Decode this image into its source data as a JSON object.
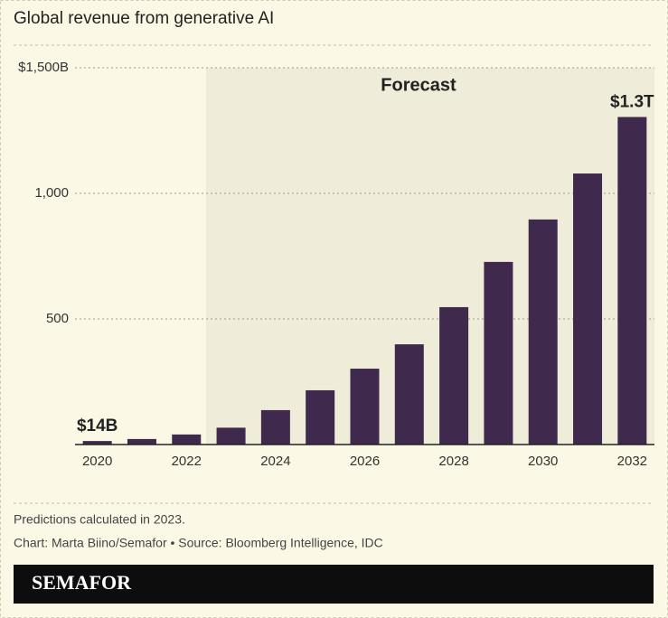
{
  "chart_data": {
    "type": "bar",
    "title": "Global revenue from generative AI",
    "categories": [
      "2020",
      null,
      "2022",
      null,
      "2024",
      null,
      "2026",
      null,
      "2028",
      null,
      "2030",
      null,
      "2032"
    ],
    "values": [
      14,
      22,
      40,
      67,
      137,
      216,
      302,
      399,
      547,
      727,
      896,
      1079,
      1304
    ],
    "value_labels": [
      "$14B",
      null,
      null,
      null,
      null,
      null,
      null,
      null,
      null,
      null,
      null,
      null,
      "$1.3T"
    ],
    "color": "#3f2a4d",
    "ylim": [
      0,
      1500
    ],
    "yticks": [
      500,
      {
        "value": 1000,
        "label": "1,000"
      },
      {
        "value": 1500,
        "label": "$1,500B"
      }
    ],
    "grid": true,
    "shaded_region": {
      "label": "Forecast",
      "from_index": 3,
      "color": "#efecd9"
    }
  },
  "footer": {
    "note": "Predictions calculated in 2023.",
    "source": "Chart: Marta Biino/Semafor • Source: Bloomberg Intelligence, IDC",
    "brand": "SEMAFOR"
  }
}
